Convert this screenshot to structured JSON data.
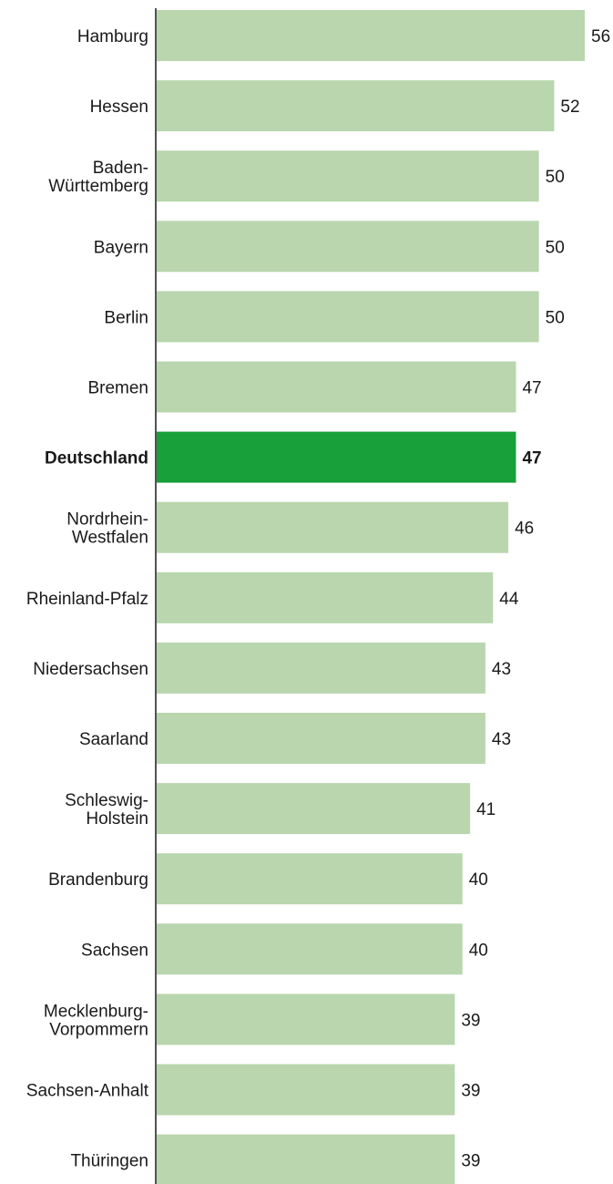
{
  "chart_data": {
    "type": "bar",
    "orientation": "horizontal",
    "categories": [
      "Hamburg",
      "Hessen",
      "Baden-\nWürttemberg",
      "Bayern",
      "Berlin",
      "Bremen",
      "Deutschland",
      "Nordrhein-\nWestfalen",
      "Rheinland-Pfalz",
      "Niedersachsen",
      "Saarland",
      "Schleswig-\nHolstein",
      "Brandenburg",
      "Sachsen",
      "Mecklenburg-\nVorpommern",
      "Sachsen-Anhalt",
      "Thüringen"
    ],
    "values": [
      56,
      52,
      50,
      50,
      50,
      47,
      47,
      46,
      44,
      43,
      43,
      41,
      40,
      40,
      39,
      39,
      39
    ],
    "value_labels": [
      "56",
      "52",
      "50",
      "50",
      "50",
      "47",
      "47",
      "46",
      "44",
      "43",
      "43",
      "41",
      "40",
      "40",
      "39",
      "39",
      "39"
    ],
    "highlight_category": "Deutschland",
    "xlim": [
      0,
      56
    ],
    "grid": false,
    "colors": {
      "bar": "#b9d6ae",
      "highlight": "#18a03a",
      "axis": "#1a1a1a",
      "text": "#1a1a1a"
    }
  }
}
